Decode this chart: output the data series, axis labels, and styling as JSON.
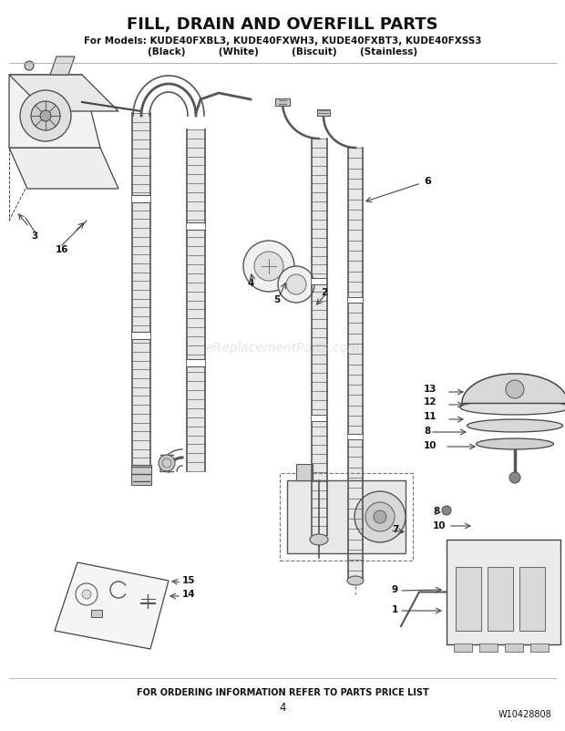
{
  "title_line1": "FILL, DRAIN AND OVERFILL PARTS",
  "title_line2": "For Models: KUDE40FXBL3, KUDE40FXWH3, KUDE40FXBT3, KUDE40FXSS3",
  "title_line3": "(Black)          (White)          (Biscuit)       (Stainless)",
  "footer_text": "FOR ORDERING INFORMATION REFER TO PARTS PRICE LIST",
  "page_number": "4",
  "part_number": "W10428808",
  "watermark": "eReplacementParts.com",
  "bg_color": "#ffffff",
  "line_color": "#444444",
  "dark_color": "#222222",
  "title_fontsize": 13,
  "subtitle_fontsize": 7.5,
  "label_fontsize": 7.5,
  "footer_fontsize": 7
}
